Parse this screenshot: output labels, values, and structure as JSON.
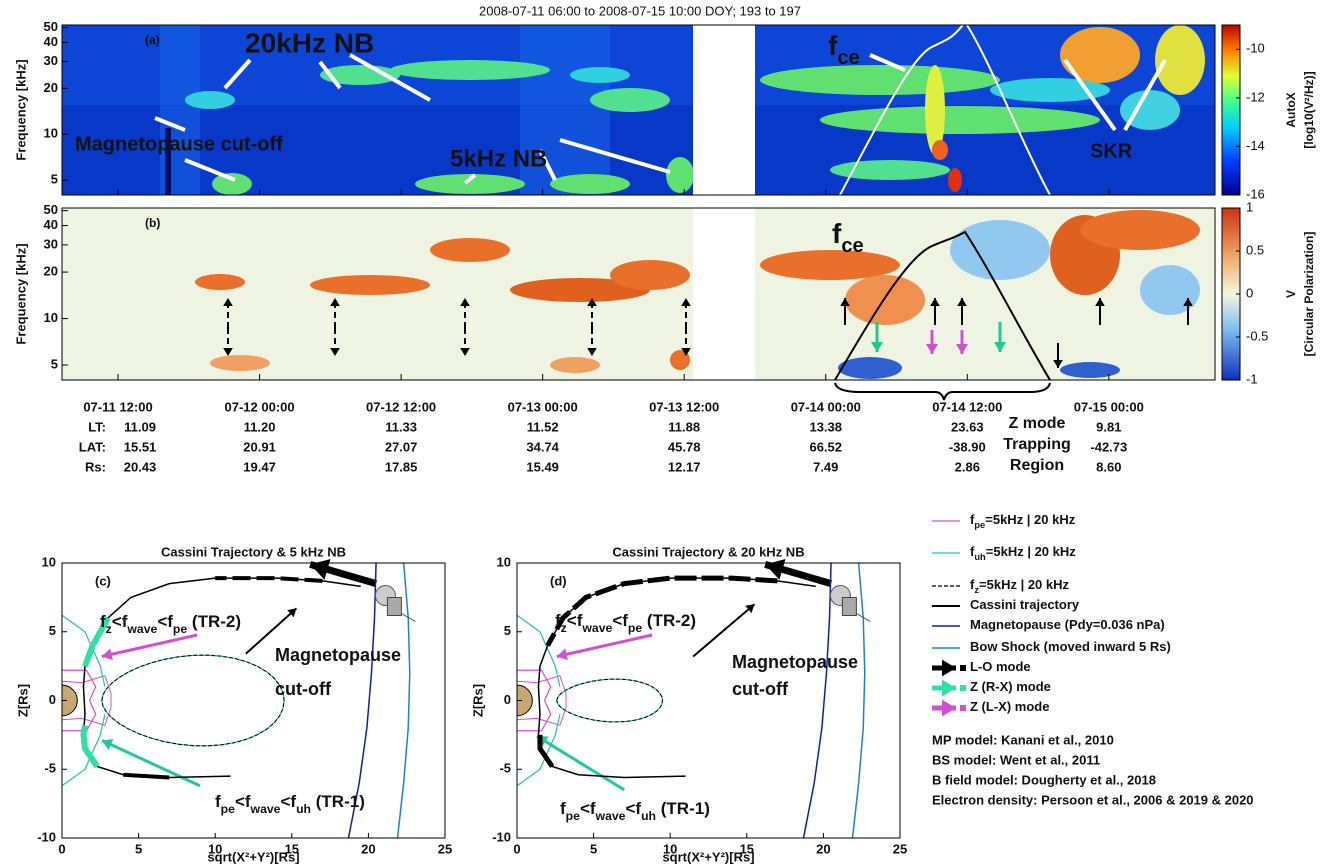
{
  "title": "2008-07-11 06:00 to 2008-07-15 10:00 DOY; 193 to 197",
  "spectrograms": [
    {
      "label": "(a)",
      "ylabel": "Frequency [kHz]",
      "log": true,
      "ylim": [
        4,
        52
      ],
      "yticks": [
        5,
        10,
        20,
        30,
        40,
        50
      ],
      "annotations": [
        "20kHz NB",
        "5kHz NB",
        "Magnetopause cut-off",
        "SKR",
        [
          "f",
          "ce"
        ]
      ],
      "colorbar": {
        "title": [
          "AutoX",
          "[log10(V²/Hz)]"
        ],
        "lim": [
          -16,
          -9
        ],
        "ticks": [
          -10,
          -12,
          -14,
          -16
        ]
      }
    },
    {
      "label": "(b)",
      "ylabel": "Frequency [kHz]",
      "log": true,
      "ylim": [
        4,
        52
      ],
      "yticks": [
        5,
        10,
        20,
        30,
        40,
        50
      ],
      "annotations": [
        [
          "f",
          "ce"
        ]
      ],
      "colorbar": {
        "title": [
          "V",
          "[Circular Polarization]"
        ],
        "lim": [
          -1,
          1
        ],
        "ticks": [
          1,
          0.5,
          0,
          -0.5,
          -1
        ]
      }
    }
  ],
  "time_axis": {
    "xlim": [
      1.25,
      99
    ],
    "ticks": [
      {
        "value": 6,
        "label": "07-11 12:00"
      },
      {
        "value": 18,
        "label": "07-12 00:00"
      },
      {
        "value": 30,
        "label": "07-12 12:00"
      },
      {
        "value": 42,
        "label": "07-13 00:00"
      },
      {
        "value": 54,
        "label": "07-13 12:00"
      },
      {
        "value": 66,
        "label": "07-14 00:00"
      },
      {
        "value": 78,
        "label": "07-14 12:00"
      },
      {
        "value": 90,
        "label": "07-15 00:00"
      }
    ]
  },
  "ephemeris": [
    {
      "name": "LT:",
      "values": [
        "11.09",
        "11.20",
        "11.33",
        "11.52",
        "11.88",
        "13.38",
        "23.63",
        "9.81"
      ]
    },
    {
      "name": "LAT:",
      "values": [
        "15.51",
        "20.91",
        "27.07",
        "34.74",
        "45.78",
        "66.52",
        "-38.90",
        "-42.73"
      ]
    },
    {
      "name": "Rs:",
      "values": [
        "20.43",
        "19.47",
        "17.85",
        "15.49",
        "12.17",
        "7.49",
        "2.86",
        "8.60"
      ]
    }
  ],
  "zmode_label": [
    "Z mode",
    "Trapping",
    "Region"
  ],
  "orbits": {
    "xlabel": "sqrt(X²+Y²)[Rs]",
    "ylabel": "Z[Rs]",
    "xlim": [
      0,
      25
    ],
    "ylim": [
      -10,
      10
    ],
    "xticks": [
      0,
      5,
      10,
      15,
      20,
      25
    ],
    "yticks": [
      -10,
      -5,
      0,
      5,
      10
    ],
    "panels": [
      {
        "title": "Cassini Trajectory & 5 kHz NB",
        "label": "(c)",
        "annotations": [
          [
            "f",
            "z",
            "<f",
            "wave",
            "<f",
            "pe",
            " (TR-2)"
          ],
          "Magnetopause",
          "cut-off",
          [
            "f",
            "pe",
            "<f",
            "wave",
            "<f",
            "uh",
            " (TR-1)"
          ]
        ]
      },
      {
        "title": "Cassini Trajectory & 20 kHz NB",
        "label": "(d)",
        "annotations": [
          [
            "f",
            "z",
            "<f",
            "wave",
            "<f",
            "pe",
            " (TR-2)"
          ],
          "Magnetopause",
          "cut-off",
          [
            "f",
            "pe",
            "<f",
            "wave",
            "<f",
            "uh",
            " (TR-1)"
          ]
        ]
      }
    ],
    "trajectory": {
      "x": [
        19.5,
        17,
        14,
        10,
        7,
        4.5,
        3,
        2,
        1.5,
        1.4,
        1.5,
        1.4,
        1.5,
        2.3,
        4,
        7,
        11
      ],
      "y": [
        8.3,
        8.7,
        8.9,
        8.9,
        8.5,
        7.5,
        6,
        4,
        2.5,
        1,
        -1,
        -2.5,
        -3.5,
        -4.8,
        -5.4,
        -5.6,
        -5.5
      ]
    },
    "magnetopause": {
      "x": [
        18.7,
        19.4,
        19.9,
        20.2,
        20.4,
        20.5
      ],
      "y": [
        -10,
        -6,
        -2,
        2,
        6,
        10
      ]
    },
    "bow_shock": {
      "x": [
        21.9,
        22.3,
        22.6,
        22.7,
        22.6,
        22.3
      ],
      "y": [
        -10,
        -6,
        -2,
        2,
        6,
        10
      ]
    }
  },
  "legend": [
    [
      "f",
      "pe",
      "=5kHz | 20 kHz"
    ],
    [
      "f",
      "uh",
      "=5kHz | 20 kHz"
    ],
    [
      "f",
      "z",
      "=5kHz | 20 kHz"
    ],
    [
      "Cassini trajectory"
    ],
    [
      "Magnetopause (Pdy=0.036 nPa)"
    ],
    [
      "Bow Shock (moved inward 5 Rs)"
    ],
    [
      "L-O mode"
    ],
    [
      "Z (R-X) mode"
    ],
    [
      "Z (L-X) mode"
    ]
  ],
  "notes": [
    "MP model: Kanani et al., 2010",
    "BS model: Went et al., 2011",
    "B field model: Dougherty et al., 2018",
    "Electron density: Persoon et al., 2006 & 2019 & 2020"
  ]
}
